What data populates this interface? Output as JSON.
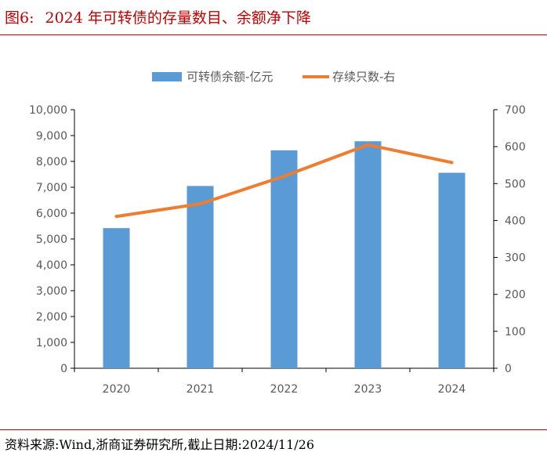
{
  "header": {
    "figure_number": "图6:",
    "title": "2024 年可转债的存量数目、余额净下降"
  },
  "footer": {
    "source": "资料来源:Wind,浙商证券研究所,截止日期:2024/11/26"
  },
  "colors": {
    "accent": "#c00000",
    "bar": "#5b9bd5",
    "line": "#ed7d31",
    "axis": "#000000",
    "tick_text": "#595959"
  },
  "chart_data": {
    "type": "bar-line-combo",
    "title": "",
    "categories": [
      "2020",
      "2021",
      "2022",
      "2023",
      "2024"
    ],
    "series": [
      {
        "name": "可转债余额-亿元",
        "type": "bar",
        "axis": "left",
        "values": [
          5420,
          7050,
          8430,
          8780,
          7560
        ]
      },
      {
        "name": "存续只数-右",
        "type": "line",
        "axis": "right",
        "values": [
          411,
          445,
          520,
          605,
          557
        ]
      }
    ],
    "y_left": {
      "min": 0,
      "max": 10000,
      "step": 1000,
      "tick_labels": [
        "0",
        "1,000",
        "2,000",
        "3,000",
        "4,000",
        "5,000",
        "6,000",
        "7,000",
        "8,000",
        "9,000",
        "10,000"
      ]
    },
    "y_right": {
      "min": 0,
      "max": 700,
      "step": 100,
      "tick_labels": [
        "0",
        "100",
        "200",
        "300",
        "400",
        "500",
        "600",
        "700"
      ]
    },
    "legend_position": "top-center",
    "grid": false
  }
}
